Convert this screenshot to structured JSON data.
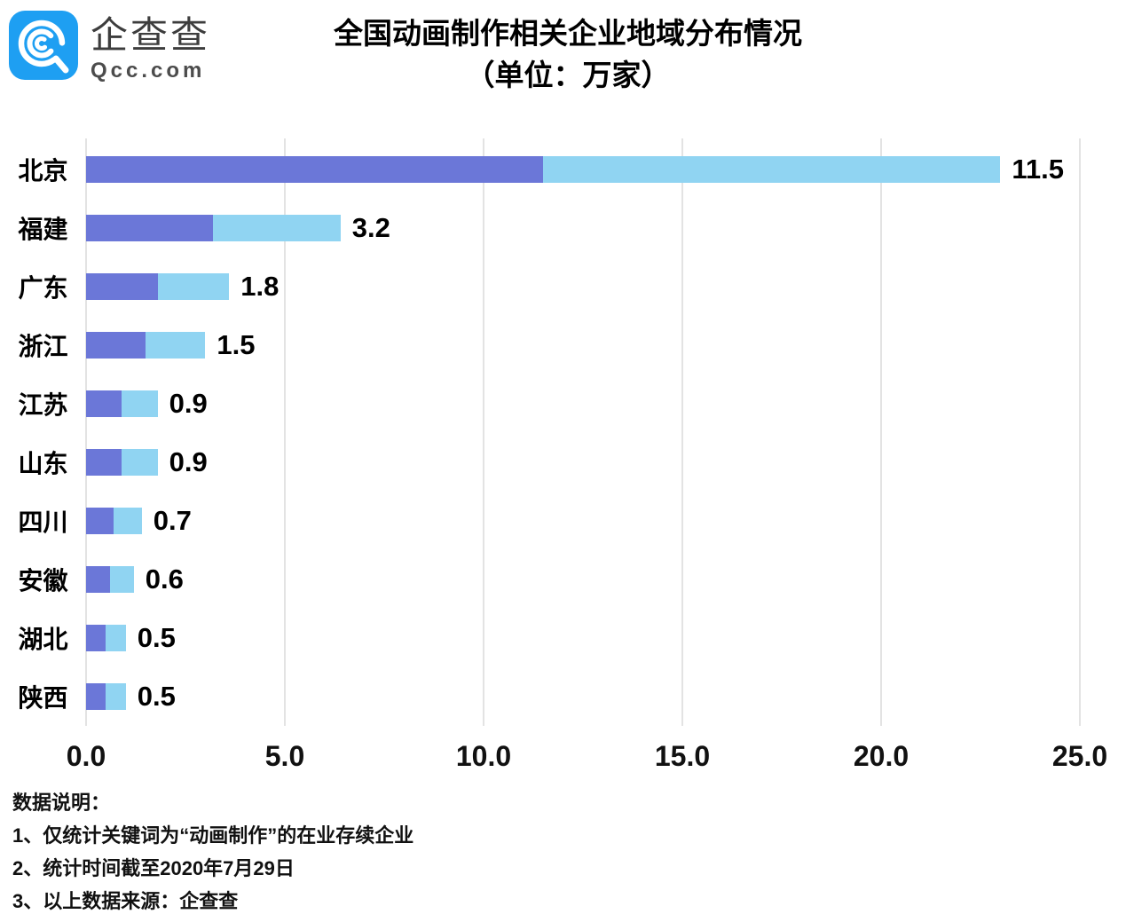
{
  "logo": {
    "brand": "企查查",
    "domain": "Qcc.com"
  },
  "title": {
    "line1": "全国动画制作相关企业地域分布情况",
    "line2": "（单位：万家）"
  },
  "colors": {
    "bar_primary": "#6b77d8",
    "bar_secondary": "#90d4f2",
    "grid": "#e3e3e3",
    "logo_blue": "#1e9ff2",
    "text": "#000000"
  },
  "chart_data": {
    "type": "bar",
    "orientation": "horizontal",
    "title": "全国动画制作相关企业地域分布情况（单位：万家）",
    "categories": [
      "北京",
      "福建",
      "广东",
      "浙江",
      "江苏",
      "山东",
      "四川",
      "安徽",
      "湖北",
      "陕西"
    ],
    "values": [
      11.5,
      3.2,
      1.8,
      1.5,
      0.9,
      0.9,
      0.7,
      0.6,
      0.5,
      0.5
    ],
    "series": [
      {
        "name": "primary-segment",
        "values": [
          11.5,
          3.2,
          1.8,
          1.5,
          0.9,
          0.9,
          0.7,
          0.6,
          0.5,
          0.5
        ]
      },
      {
        "name": "secondary-segment",
        "values": [
          11.5,
          3.2,
          1.8,
          1.5,
          0.9,
          0.9,
          0.7,
          0.6,
          0.5,
          0.5
        ]
      }
    ],
    "data_labels": [
      "11.5",
      "3.2",
      "1.8",
      "1.5",
      "0.9",
      "0.9",
      "0.7",
      "0.6",
      "0.5",
      "0.5"
    ],
    "xlabel": "",
    "ylabel": "",
    "x_ticks": [
      0.0,
      5.0,
      10.0,
      15.0,
      20.0,
      25.0
    ],
    "x_tick_labels": [
      "0.0",
      "5.0",
      "10.0",
      "15.0",
      "20.0",
      "25.0"
    ],
    "xlim": [
      0,
      25.5
    ],
    "grid": "vertical",
    "legend": "none",
    "unit": "万家"
  },
  "notes": {
    "heading": "数据说明：",
    "items": [
      "1、仅统计关键词为“动画制作”的在业存续企业",
      "2、统计时间截至2020年7月29日",
      "3、以上数据来源：企查查"
    ]
  }
}
